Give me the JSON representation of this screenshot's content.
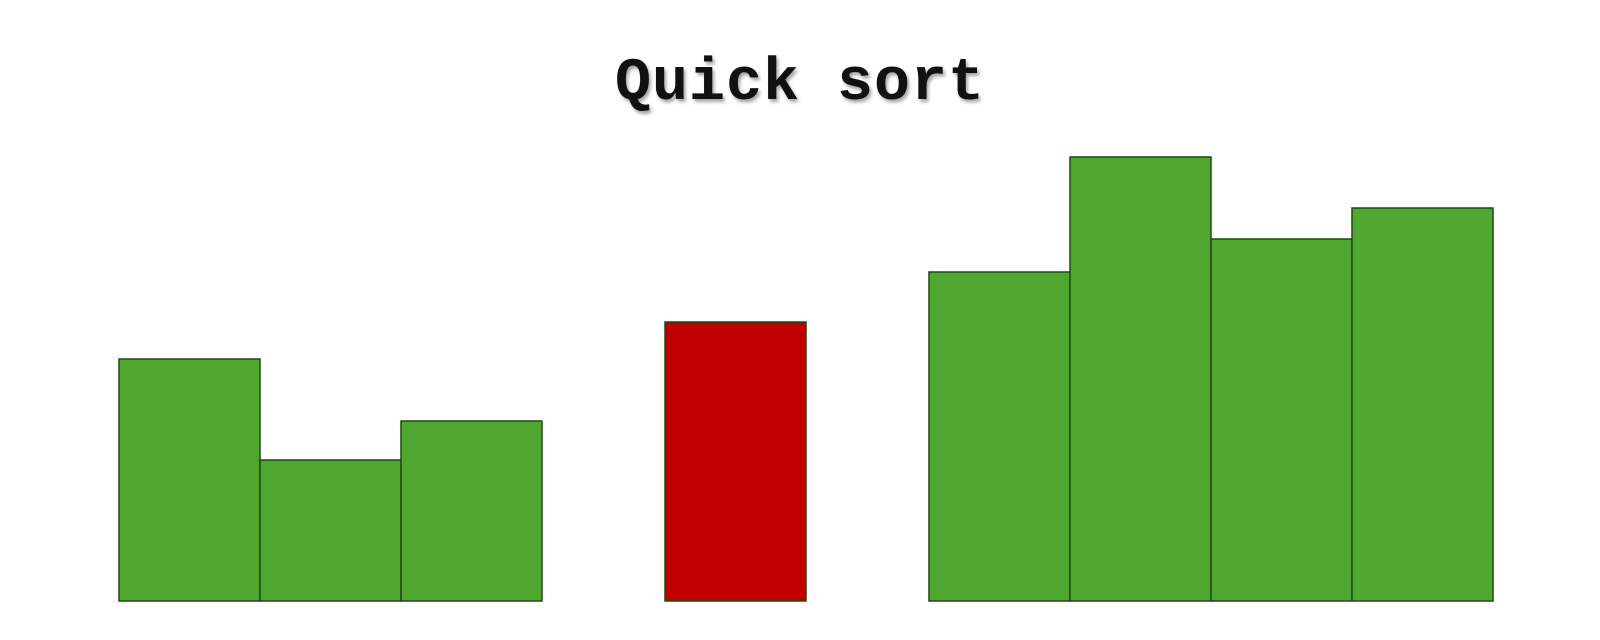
{
  "title": "Quick sort",
  "chart_data": {
    "type": "bar",
    "values": [
      245,
      143,
      182,
      282,
      333,
      449,
      366,
      397
    ],
    "roles": [
      "left",
      "left",
      "left",
      "pivot",
      "right",
      "right",
      "right",
      "right"
    ],
    "ylim": [
      0,
      449
    ]
  },
  "colors": {
    "partition": "#4fa72f",
    "pivot": "#c00000",
    "outline": "#1e4a12"
  }
}
